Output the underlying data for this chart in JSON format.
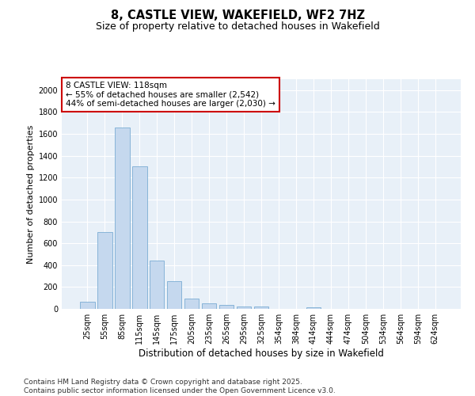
{
  "title": "8, CASTLE VIEW, WAKEFIELD, WF2 7HZ",
  "subtitle": "Size of property relative to detached houses in Wakefield",
  "xlabel": "Distribution of detached houses by size in Wakefield",
  "ylabel": "Number of detached properties",
  "categories": [
    "25sqm",
    "55sqm",
    "85sqm",
    "115sqm",
    "145sqm",
    "175sqm",
    "205sqm",
    "235sqm",
    "265sqm",
    "295sqm",
    "325sqm",
    "354sqm",
    "384sqm",
    "414sqm",
    "444sqm",
    "474sqm",
    "504sqm",
    "534sqm",
    "564sqm",
    "594sqm",
    "624sqm"
  ],
  "values": [
    65,
    700,
    1655,
    1300,
    445,
    255,
    95,
    50,
    35,
    25,
    20,
    0,
    0,
    15,
    0,
    0,
    0,
    0,
    0,
    0,
    0
  ],
  "bar_color": "#c5d8ee",
  "bar_edge_color": "#7aadd4",
  "annotation_line1": "8 CASTLE VIEW: 118sqm",
  "annotation_line2": "← 55% of detached houses are smaller (2,542)",
  "annotation_line3": "44% of semi-detached houses are larger (2,030) →",
  "annotation_box_facecolor": "#ffffff",
  "annotation_box_edgecolor": "#cc0000",
  "ylim": [
    0,
    2100
  ],
  "yticks": [
    0,
    200,
    400,
    600,
    800,
    1000,
    1200,
    1400,
    1600,
    1800,
    2000
  ],
  "plot_bg_color": "#e8f0f8",
  "fig_bg_color": "#ffffff",
  "grid_color": "#ffffff",
  "footer_line1": "Contains HM Land Registry data © Crown copyright and database right 2025.",
  "footer_line2": "Contains public sector information licensed under the Open Government Licence v3.0.",
  "title_fontsize": 10.5,
  "subtitle_fontsize": 9,
  "xlabel_fontsize": 8.5,
  "ylabel_fontsize": 8,
  "tick_fontsize": 7,
  "annot_fontsize": 7.5,
  "footer_fontsize": 6.5
}
